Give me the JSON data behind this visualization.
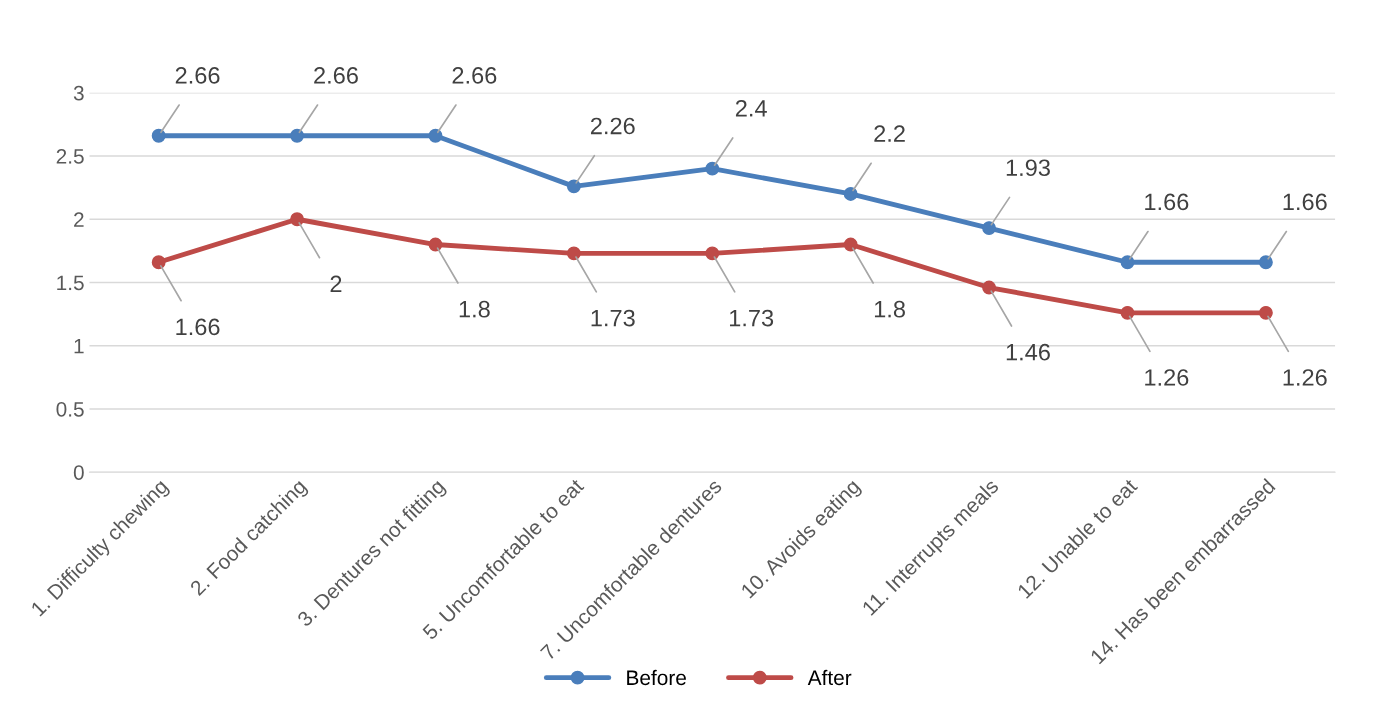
{
  "chart_data": {
    "type": "line",
    "categories": [
      "1. Difficulty chewing",
      "2. Food catching",
      "3. Dentures not fitting",
      "5. Uncomfortable to eat",
      "7. Uncomfortable dentures",
      "10. Avoids eating",
      "11. Interrupts meals",
      "12. Unable to eat",
      "14. Has been embarrassed"
    ],
    "series": [
      {
        "name": "Before",
        "color": "#4a7ebb",
        "values": [
          2.66,
          2.66,
          2.66,
          2.26,
          2.4,
          2.2,
          1.93,
          1.66,
          1.66
        ]
      },
      {
        "name": "After",
        "color": "#be4b48",
        "values": [
          1.66,
          2,
          1.8,
          1.73,
          1.73,
          1.8,
          1.46,
          1.26,
          1.26
        ]
      }
    ],
    "ylim": [
      0,
      3
    ],
    "yticks": [
      0,
      0.5,
      1,
      1.5,
      2,
      2.5,
      3
    ],
    "grid": "y",
    "legend": "bottom",
    "marker": "circle",
    "line_style": "solid",
    "data_labels": true
  }
}
